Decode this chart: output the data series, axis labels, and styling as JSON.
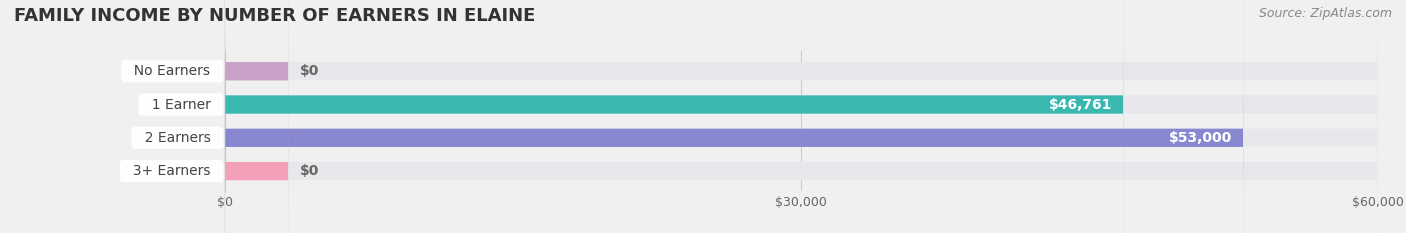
{
  "title": "FAMILY INCOME BY NUMBER OF EARNERS IN ELAINE",
  "source": "Source: ZipAtlas.com",
  "categories": [
    "No Earners",
    "1 Earner",
    "2 Earners",
    "3+ Earners"
  ],
  "values": [
    0,
    46761,
    53000,
    0
  ],
  "bar_colors": [
    "#c9a0c8",
    "#3ab8b0",
    "#8888d0",
    "#f4a0b8"
  ],
  "label_colors": [
    "#888888",
    "#ffffff",
    "#ffffff",
    "#888888"
  ],
  "xlim": [
    0,
    60000
  ],
  "xticks": [
    0,
    30000,
    60000
  ],
  "xtick_labels": [
    "$0",
    "$30,000",
    "$60,000"
  ],
  "background_color": "#f0f0f0",
  "bar_bg_color": "#e8e8ec",
  "title_fontsize": 13,
  "source_fontsize": 9,
  "bar_height": 0.55,
  "label_fontsize": 10
}
